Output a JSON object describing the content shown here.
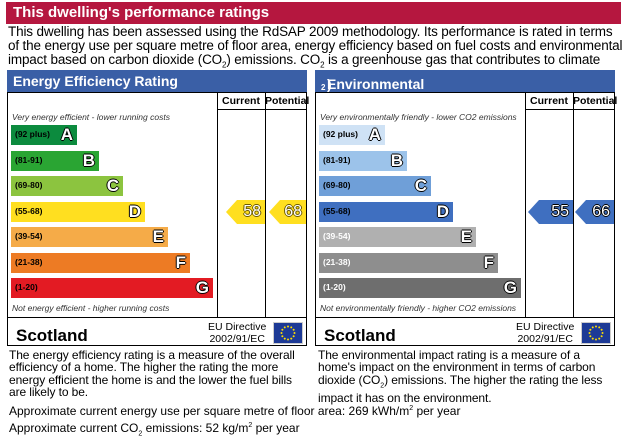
{
  "title": "This dwelling's performance ratings",
  "intro": {
    "part1": "This dwelling has been assessed using the RdSAP 2009 methodology. Its performance is rated in terms of the energy use per square metre of floor area, energy efficiency based on fuel costs and environmental impact based on carbon dioxide (CO",
    "sub1": "2",
    "part2": ") emissions. CO",
    "sub2": "2",
    "part3": " is a greenhouse gas that contributes to climate change."
  },
  "energy_efficiency": {
    "heading": "Energy Efficiency Rating",
    "col_current": "Current",
    "col_potential": "Potential",
    "top_note": "Very energy efficient - lower running costs",
    "bottom_note": "Not energy efficient - higher running costs",
    "bands": [
      {
        "range": "(92 plus)",
        "letter": "A",
        "color": "#0c8b3e"
      },
      {
        "range": "(81-91)",
        "letter": "B",
        "color": "#2aa533"
      },
      {
        "range": "(69-80)",
        "letter": "C",
        "color": "#8cc43f"
      },
      {
        "range": "(55-68)",
        "letter": "D",
        "color": "#ffdf20"
      },
      {
        "range": "(39-54)",
        "letter": "E",
        "color": "#f5ab48"
      },
      {
        "range": "(21-38)",
        "letter": "F",
        "color": "#ed7b24"
      },
      {
        "range": "(1-20)",
        "letter": "G",
        "color": "#e31b23"
      }
    ],
    "current": 58,
    "potential": 68,
    "pointer_color": "#ffdf20",
    "country": "Scotland",
    "directive_line1": "EU Directive",
    "directive_line2": "2002/91/EC",
    "description": "The energy efficiency rating is a measure of the overall efficiency of a home. The higher the rating the more energy efficient the home is and the lower the fuel bills are likely to be."
  },
  "environmental_impact": {
    "heading_part1": "Environmental Impact (CO",
    "heading_sub": "2",
    "heading_part2": ") Rating",
    "col_current": "Current",
    "col_potential": "Potential",
    "top_note": "Very environmentally friendly - lower CO2 emissions",
    "bottom_note": "Not environmentally friendly - higher CO2 emissions",
    "bands": [
      {
        "range": "(92 plus)",
        "letter": "A",
        "color": "#cfe2f5"
      },
      {
        "range": "(81-91)",
        "letter": "B",
        "color": "#9cc3ea"
      },
      {
        "range": "(69-80)",
        "letter": "C",
        "color": "#6f9fd8"
      },
      {
        "range": "(55-68)",
        "letter": "D",
        "color": "#3f6fc0"
      },
      {
        "range": "(39-54)",
        "letter": "E",
        "color": "#b0b0b0"
      },
      {
        "range": "(21-38)",
        "letter": "F",
        "color": "#8e8e8e"
      },
      {
        "range": "(1-20)",
        "letter": "G",
        "color": "#6e6e6e"
      }
    ],
    "current": 55,
    "potential": 66,
    "pointer_color": "#3f6fc0",
    "country": "Scotland",
    "directive_line1": "EU Directive",
    "directive_line2": "2002/91/EC",
    "description_part1": "The environmental impact rating is a measure of a home's impact on the environment in terms of carbon dioxide (CO",
    "description_sub": "2",
    "description_part2": ") emissions. The higher the rating the less impact it has on the environment."
  },
  "footer": {
    "energy_label": "Approximate current energy use per square metre of floor area: ",
    "energy_value": "269 kWh/m",
    "energy_sup": "2",
    "energy_unit_tail": " per year",
    "co2_label_part1": "Approximate current CO",
    "co2_label_sub": "2",
    "co2_label_part2": " emissions: ",
    "co2_value": "52 kg/m",
    "co2_sup": "2",
    "co2_unit_tail": " per year"
  },
  "icons": {
    "eu_flag": "eu-flag-icon"
  }
}
